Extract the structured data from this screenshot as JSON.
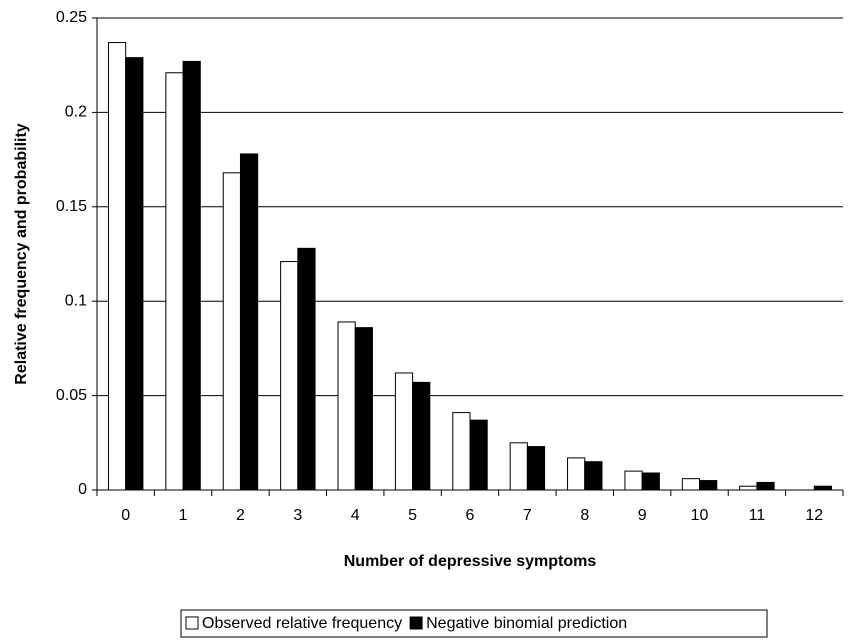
{
  "chart_data": {
    "type": "bar",
    "xlabel": "Number of depressive symptoms",
    "ylabel": "Relative frequency and probability",
    "categories": [
      "0",
      "1",
      "2",
      "3",
      "4",
      "5",
      "6",
      "7",
      "8",
      "9",
      "10",
      "11",
      "12"
    ],
    "series": [
      {
        "name": "Observed relative frequency",
        "color": "#ffffff",
        "values": [
          0.237,
          0.221,
          0.168,
          0.121,
          0.089,
          0.062,
          0.041,
          0.025,
          0.017,
          0.01,
          0.006,
          0.002,
          0
        ]
      },
      {
        "name": "Negative binomial prediction",
        "color": "#000000",
        "values": [
          0.229,
          0.227,
          0.178,
          0.128,
          0.086,
          0.057,
          0.037,
          0.023,
          0.015,
          0.009,
          0.005,
          0.004,
          0.002
        ]
      }
    ],
    "ylim": [
      0,
      0.25
    ],
    "yticks": [
      0,
      0.05,
      0.1,
      0.15,
      0.2,
      0.25
    ],
    "grid": true,
    "legend": "bottom"
  }
}
